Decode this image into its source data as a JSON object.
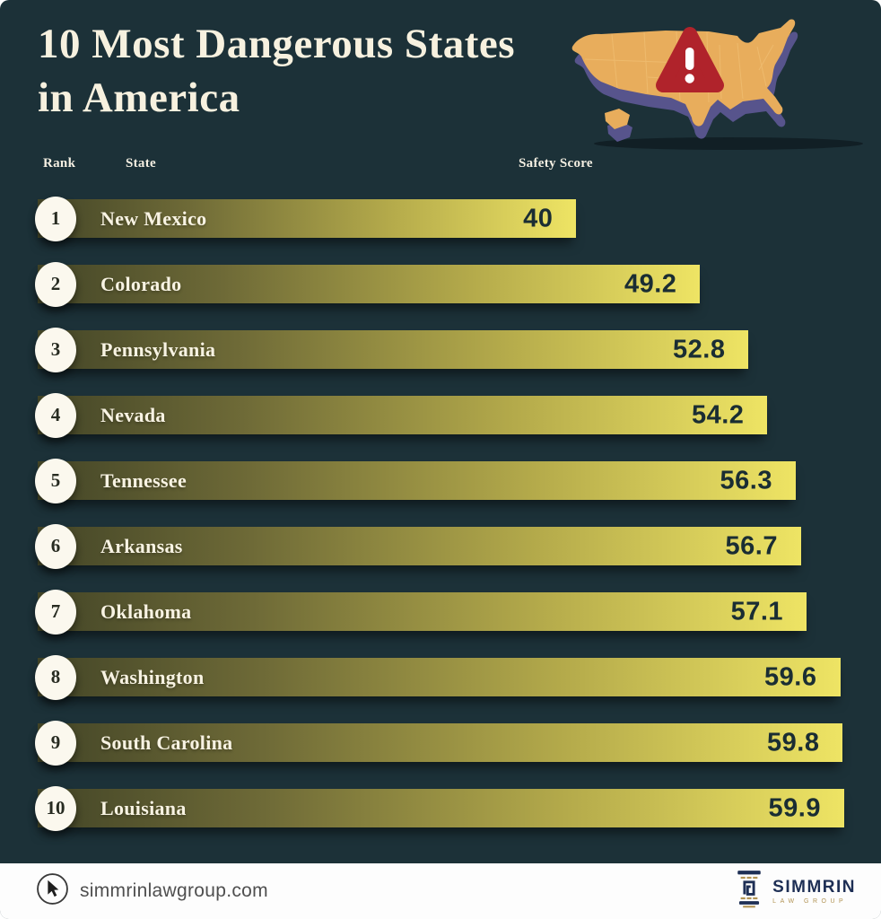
{
  "title": {
    "line1": "10 Most Dangerous States",
    "line2": "in America"
  },
  "table_headers": {
    "rank": "Rank",
    "state": "State",
    "score": "Safety Score"
  },
  "chart_data": {
    "type": "bar",
    "orientation": "horizontal",
    "title": "10 Most Dangerous States in America",
    "value_label": "Safety Score",
    "xlim": [
      0,
      60
    ],
    "grid": false,
    "legend": false,
    "ranks": [
      1,
      2,
      3,
      4,
      5,
      6,
      7,
      8,
      9,
      10
    ],
    "categories": [
      "New Mexico",
      "Colorado",
      "Pennsylvania",
      "Nevada",
      "Tennessee",
      "Arkansas",
      "Oklahoma",
      "Washington",
      "South Carolina",
      "Louisiana"
    ],
    "values": [
      40,
      49.2,
      52.8,
      54.2,
      56.3,
      56.7,
      57.1,
      59.6,
      59.8,
      59.9
    ],
    "bar_gradient": [
      "#434527",
      "#eee464"
    ],
    "value_color": "#1a2d33",
    "label_color": "#f8f3e3",
    "background_color": "#1c3138"
  },
  "map": {
    "icon": "usa-map-3d",
    "alert": "warning-triangle",
    "land_color": "#e8ad5c",
    "side_color": "#57548c",
    "alert_color": "#b0232b"
  },
  "footer": {
    "website": "simmrinlawgroup.com",
    "brand": "SIMMRIN",
    "brand_subtitle": "LAW GROUP"
  }
}
